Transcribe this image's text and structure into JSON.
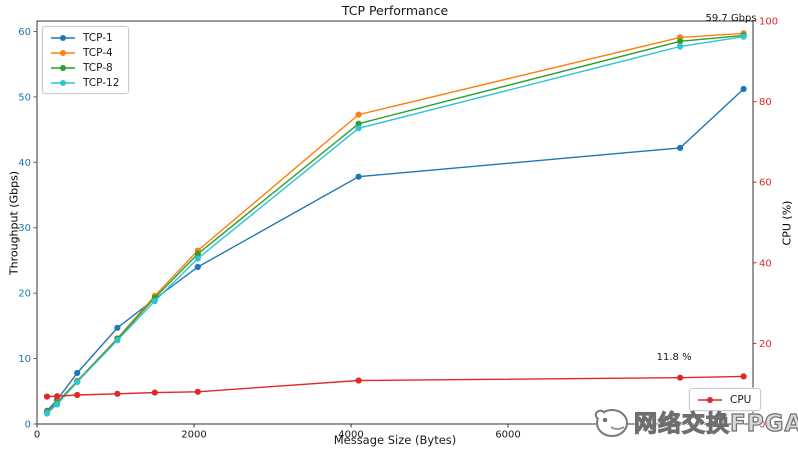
{
  "title": "TCP Performance",
  "axes": {
    "xlabel": "Message Size (Bytes)",
    "ylabel_left": "Throughput (Gbps)",
    "ylabel_right": "CPU (%)"
  },
  "colors": {
    "throughput_axis": "#1f77b4",
    "cpu_axis": "#e12727",
    "spine": "#333333",
    "tcp1": "#1f77b4",
    "tcp4": "#ff7f0e",
    "tcp8": "#2ca02c",
    "tcp12": "#2ec4d6"
  },
  "legend": {
    "throughput_labels": [
      "TCP-1",
      "TCP-4",
      "TCP-8",
      "TCP-12"
    ],
    "cpu_label": "CPU"
  },
  "watermark": {
    "logo": "bird-logo",
    "text": "网络交换FPGA"
  },
  "chart_data": {
    "type": "line",
    "title": "TCP Performance",
    "xlabel": "Message Size (Bytes)",
    "ylabel_left": "Throughput (Gbps)",
    "ylabel_right": "CPU (%)",
    "x": [
      128,
      256,
      512,
      1024,
      1500,
      2048,
      4096,
      8192,
      9000
    ],
    "x_ticks": [
      0,
      2000,
      4000,
      6000
    ],
    "y_ticks_left": [
      0,
      10,
      20,
      30,
      40,
      50,
      60
    ],
    "y_ticks_right": [
      0,
      20,
      40,
      60,
      80,
      100
    ],
    "xlim": [
      0,
      9120
    ],
    "ylim_left": [
      0,
      61.6
    ],
    "ylim_right": [
      0,
      100
    ],
    "grid": false,
    "legend_positions": {
      "throughput": "upper left",
      "cpu": "lower right"
    },
    "series": [
      {
        "name": "TCP-1",
        "axis": "left",
        "color": "#1f77b4",
        "values": [
          2.0,
          3.7,
          7.8,
          14.7,
          19.1,
          24.0,
          37.8,
          42.2,
          51.2
        ]
      },
      {
        "name": "TCP-4",
        "axis": "left",
        "color": "#ff7f0e",
        "values": [
          1.8,
          3.3,
          6.6,
          13.1,
          19.6,
          26.5,
          47.3,
          59.1,
          59.7
        ]
      },
      {
        "name": "TCP-8",
        "axis": "left",
        "color": "#2ca02c",
        "values": [
          1.7,
          3.2,
          6.5,
          13.0,
          19.3,
          26.0,
          45.9,
          58.5,
          59.4
        ]
      },
      {
        "name": "TCP-12",
        "axis": "left",
        "color": "#2ec4d6",
        "values": [
          1.6,
          3.0,
          6.4,
          12.8,
          18.8,
          25.3,
          45.2,
          57.7,
          59.2
        ]
      },
      {
        "name": "CPU",
        "axis": "right",
        "color": "#e12727",
        "values": [
          6.8,
          6.9,
          7.2,
          7.5,
          7.8,
          8.0,
          10.8,
          11.5,
          11.8
        ]
      }
    ],
    "annotations": [
      {
        "text": "59.7 Gbps",
        "x": 9000,
        "y": 59.7,
        "axis": "left"
      },
      {
        "text": "11.8 %",
        "x": 9000,
        "y": 11.8,
        "axis": "right"
      }
    ]
  }
}
